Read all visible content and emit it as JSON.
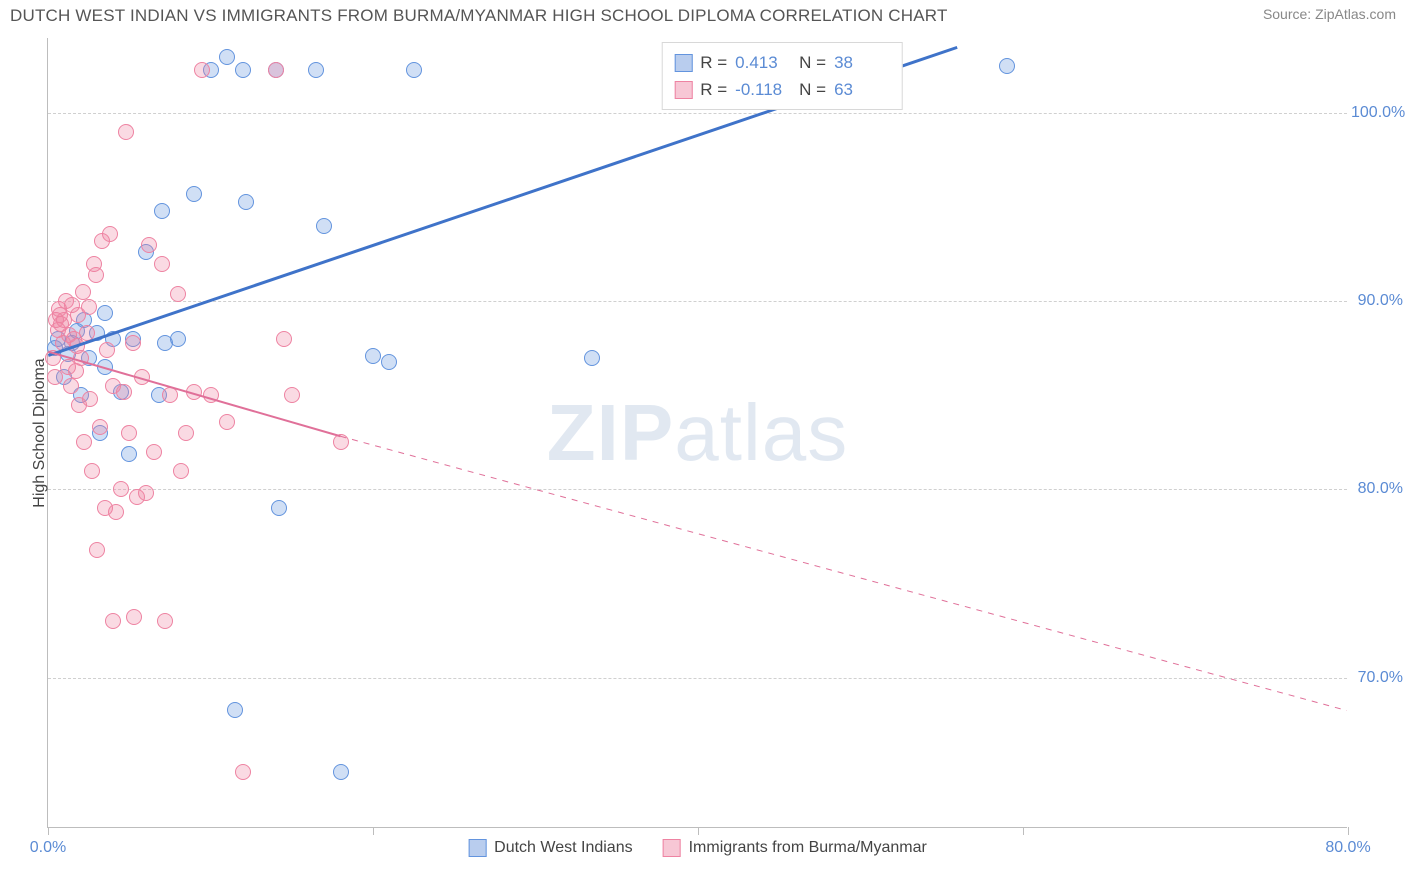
{
  "title": "DUTCH WEST INDIAN VS IMMIGRANTS FROM BURMA/MYANMAR HIGH SCHOOL DIPLOMA CORRELATION CHART",
  "source_label": "Source: ZipAtlas.com",
  "watermark": {
    "bold": "ZIP",
    "light": "atlas"
  },
  "chart": {
    "type": "scatter",
    "background_color": "#ffffff",
    "grid_color": "#d0d0d0",
    "axis_color": "#bdbdbd",
    "ylabel": "High School Diploma",
    "ylabel_color": "#444444",
    "xlim": [
      0,
      80
    ],
    "ylim": [
      62,
      104
    ],
    "yticks": [
      70,
      80,
      90,
      100
    ],
    "ytick_labels": [
      "70.0%",
      "80.0%",
      "90.0%",
      "100.0%"
    ],
    "ytick_color": "#5b8bd4",
    "xticks": [
      0,
      20,
      40,
      60,
      80
    ],
    "xtick_labels": [
      "0.0%",
      "",
      "",
      "",
      "80.0%"
    ],
    "xtick_color": "#5b8bd4",
    "marker_radius": 8,
    "marker_border_width": 1.5,
    "series": [
      {
        "name": "Dutch West Indians",
        "color_fill": "rgba(99,148,222,0.30)",
        "color_stroke": "#6394de",
        "legend_swatch_fill": "#b9cdee",
        "legend_swatch_border": "#6394de",
        "R": "0.413",
        "N": "38",
        "trend": {
          "solid": {
            "x1": 0,
            "y1": 87.1,
            "x2": 56,
            "y2": 103.5
          },
          "dashed": null,
          "stroke": "#3f73c9",
          "width": 3
        },
        "points": [
          [
            0.4,
            87.5
          ],
          [
            0.6,
            88.0
          ],
          [
            1.0,
            86.0
          ],
          [
            1.2,
            87.2
          ],
          [
            1.5,
            87.8
          ],
          [
            1.8,
            88.4
          ],
          [
            2.0,
            85.0
          ],
          [
            2.2,
            89.0
          ],
          [
            2.5,
            87.0
          ],
          [
            3.0,
            88.3
          ],
          [
            3.2,
            83.0
          ],
          [
            3.5,
            86.5
          ],
          [
            4.0,
            88.0
          ],
          [
            4.5,
            85.2
          ],
          [
            3.5,
            89.4
          ],
          [
            5.0,
            81.9
          ],
          [
            5.2,
            88.0
          ],
          [
            6.0,
            92.6
          ],
          [
            6.8,
            85.0
          ],
          [
            7.0,
            94.8
          ],
          [
            7.2,
            87.8
          ],
          [
            8.0,
            88.0
          ],
          [
            9.0,
            95.7
          ],
          [
            10.0,
            102.3
          ],
          [
            11.0,
            103.0
          ],
          [
            11.5,
            68.3
          ],
          [
            12.0,
            102.3
          ],
          [
            12.2,
            95.3
          ],
          [
            14.0,
            102.3
          ],
          [
            14.2,
            79.0
          ],
          [
            16.5,
            102.3
          ],
          [
            17.0,
            94.0
          ],
          [
            18.0,
            65.0
          ],
          [
            20.0,
            87.1
          ],
          [
            21.0,
            86.8
          ],
          [
            22.5,
            102.3
          ],
          [
            33.5,
            87.0
          ],
          [
            59.0,
            102.5
          ]
        ]
      },
      {
        "name": "Immigrants from Burma/Myanmar",
        "color_fill": "rgba(238,131,162,0.30)",
        "color_stroke": "#ee83a2",
        "legend_swatch_fill": "#f7c7d5",
        "legend_swatch_border": "#ee83a2",
        "R": "-0.118",
        "N": "63",
        "trend": {
          "solid": {
            "x1": 0,
            "y1": 87.3,
            "x2": 18,
            "y2": 82.8
          },
          "dashed": {
            "x1": 18,
            "y1": 82.8,
            "x2": 80,
            "y2": 68.2
          },
          "stroke": "#e07099",
          "width": 2
        },
        "points": [
          [
            0.3,
            87.0
          ],
          [
            0.4,
            86.0
          ],
          [
            0.5,
            89.0
          ],
          [
            0.6,
            88.5
          ],
          [
            0.7,
            89.6
          ],
          [
            0.75,
            89.3
          ],
          [
            0.8,
            88.8
          ],
          [
            0.9,
            87.8
          ],
          [
            1.0,
            89.0
          ],
          [
            1.1,
            90.0
          ],
          [
            1.2,
            86.5
          ],
          [
            1.3,
            88.2
          ],
          [
            1.4,
            85.5
          ],
          [
            1.5,
            89.8
          ],
          [
            1.6,
            88.0
          ],
          [
            1.7,
            86.3
          ],
          [
            1.8,
            87.6
          ],
          [
            1.85,
            89.3
          ],
          [
            1.9,
            84.5
          ],
          [
            2.0,
            87.0
          ],
          [
            2.15,
            90.5
          ],
          [
            2.2,
            82.5
          ],
          [
            2.4,
            88.3
          ],
          [
            2.5,
            89.7
          ],
          [
            2.6,
            84.8
          ],
          [
            2.7,
            81.0
          ],
          [
            2.8,
            92.0
          ],
          [
            2.95,
            91.4
          ],
          [
            3.0,
            76.8
          ],
          [
            3.2,
            83.3
          ],
          [
            3.3,
            93.2
          ],
          [
            3.5,
            79.0
          ],
          [
            3.6,
            87.4
          ],
          [
            3.8,
            93.6
          ],
          [
            4.0,
            85.5
          ],
          [
            4.0,
            73.0
          ],
          [
            4.2,
            78.8
          ],
          [
            4.5,
            80.0
          ],
          [
            4.7,
            85.2
          ],
          [
            4.8,
            99.0
          ],
          [
            5.0,
            83.0
          ],
          [
            5.2,
            87.8
          ],
          [
            5.3,
            73.2
          ],
          [
            5.5,
            79.6
          ],
          [
            5.8,
            86.0
          ],
          [
            6.0,
            79.8
          ],
          [
            6.2,
            93.0
          ],
          [
            6.5,
            82.0
          ],
          [
            7.0,
            92.0
          ],
          [
            7.2,
            73.0
          ],
          [
            7.5,
            85.0
          ],
          [
            8.0,
            90.4
          ],
          [
            8.2,
            81.0
          ],
          [
            8.5,
            83.0
          ],
          [
            9.0,
            85.2
          ],
          [
            9.5,
            102.3
          ],
          [
            10.0,
            85.0
          ],
          [
            11.0,
            83.6
          ],
          [
            12.0,
            65.0
          ],
          [
            14.0,
            102.3
          ],
          [
            14.5,
            88.0
          ],
          [
            15.0,
            85.0
          ],
          [
            18.0,
            82.5
          ]
        ]
      }
    ],
    "legend_top": {
      "bg": "#ffffff",
      "border": "#d8d8d8",
      "label_R": "R =",
      "label_N": "N ="
    },
    "legend_bottom": {
      "text_color": "#444444"
    }
  }
}
